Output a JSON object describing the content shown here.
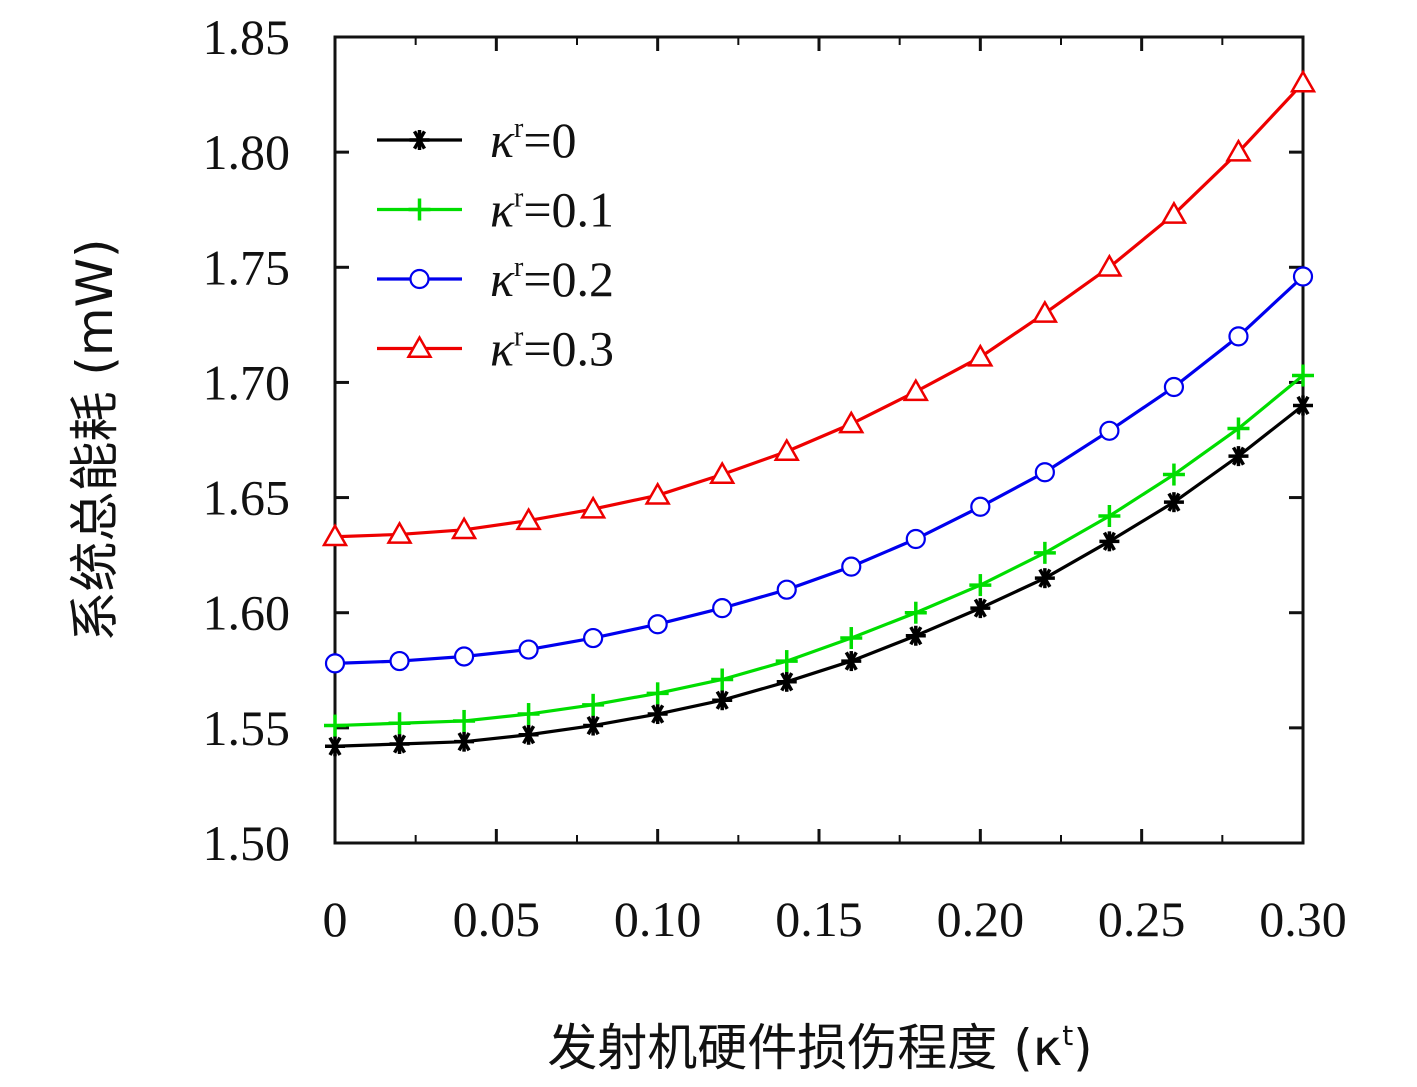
{
  "chart_data": {
    "type": "line",
    "xlabel": "发射机硬件损伤程度 (κ",
    "xlabel_sup": "t",
    "xlabel_close": ")",
    "ylabel": "系统总能耗 (mW)",
    "xlim": [
      0,
      0.3
    ],
    "ylim": [
      1.5,
      1.85
    ],
    "x_ticks": [
      "0",
      "0.05",
      "0.10",
      "0.15",
      "0.20",
      "0.25",
      "0.30"
    ],
    "x_tick_values": [
      0,
      0.05,
      0.1,
      0.15,
      0.2,
      0.25,
      0.3
    ],
    "y_ticks": [
      "1.50",
      "1.55",
      "1.60",
      "1.65",
      "1.70",
      "1.75",
      "1.80",
      "1.85"
    ],
    "y_tick_values": [
      1.5,
      1.55,
      1.6,
      1.65,
      1.7,
      1.75,
      1.8,
      1.85
    ],
    "grid": false,
    "legend_position": "top-left",
    "x": [
      0,
      0.02,
      0.04,
      0.06,
      0.08,
      0.1,
      0.12,
      0.14,
      0.16,
      0.18,
      0.2,
      0.22,
      0.24,
      0.26,
      0.28,
      0.3
    ],
    "series": [
      {
        "legend_prefix": "κ",
        "legend_sup": "r",
        "legend_value": "=0",
        "color": "#000000",
        "marker": "asterisk",
        "values": [
          1.542,
          1.543,
          1.544,
          1.547,
          1.551,
          1.556,
          1.562,
          1.57,
          1.579,
          1.59,
          1.602,
          1.615,
          1.631,
          1.648,
          1.668,
          1.69
        ]
      },
      {
        "legend_prefix": "κ",
        "legend_sup": "r",
        "legend_value": "=0.1",
        "color": "#00dd00",
        "marker": "plus",
        "values": [
          1.551,
          1.552,
          1.553,
          1.556,
          1.56,
          1.565,
          1.571,
          1.579,
          1.589,
          1.6,
          1.612,
          1.626,
          1.642,
          1.66,
          1.68,
          1.703
        ]
      },
      {
        "legend_prefix": "κ",
        "legend_sup": "r",
        "legend_value": "=0.2",
        "color": "#0000ee",
        "marker": "circle",
        "values": [
          1.578,
          1.579,
          1.581,
          1.584,
          1.589,
          1.595,
          1.602,
          1.61,
          1.62,
          1.632,
          1.646,
          1.661,
          1.679,
          1.698,
          1.72,
          1.746
        ]
      },
      {
        "legend_prefix": "κ",
        "legend_sup": "r",
        "legend_value": "=0.3",
        "color": "#ee0000",
        "marker": "triangle",
        "values": [
          1.633,
          1.634,
          1.636,
          1.64,
          1.645,
          1.651,
          1.66,
          1.67,
          1.682,
          1.696,
          1.711,
          1.73,
          1.75,
          1.773,
          1.8,
          1.83
        ]
      }
    ]
  }
}
